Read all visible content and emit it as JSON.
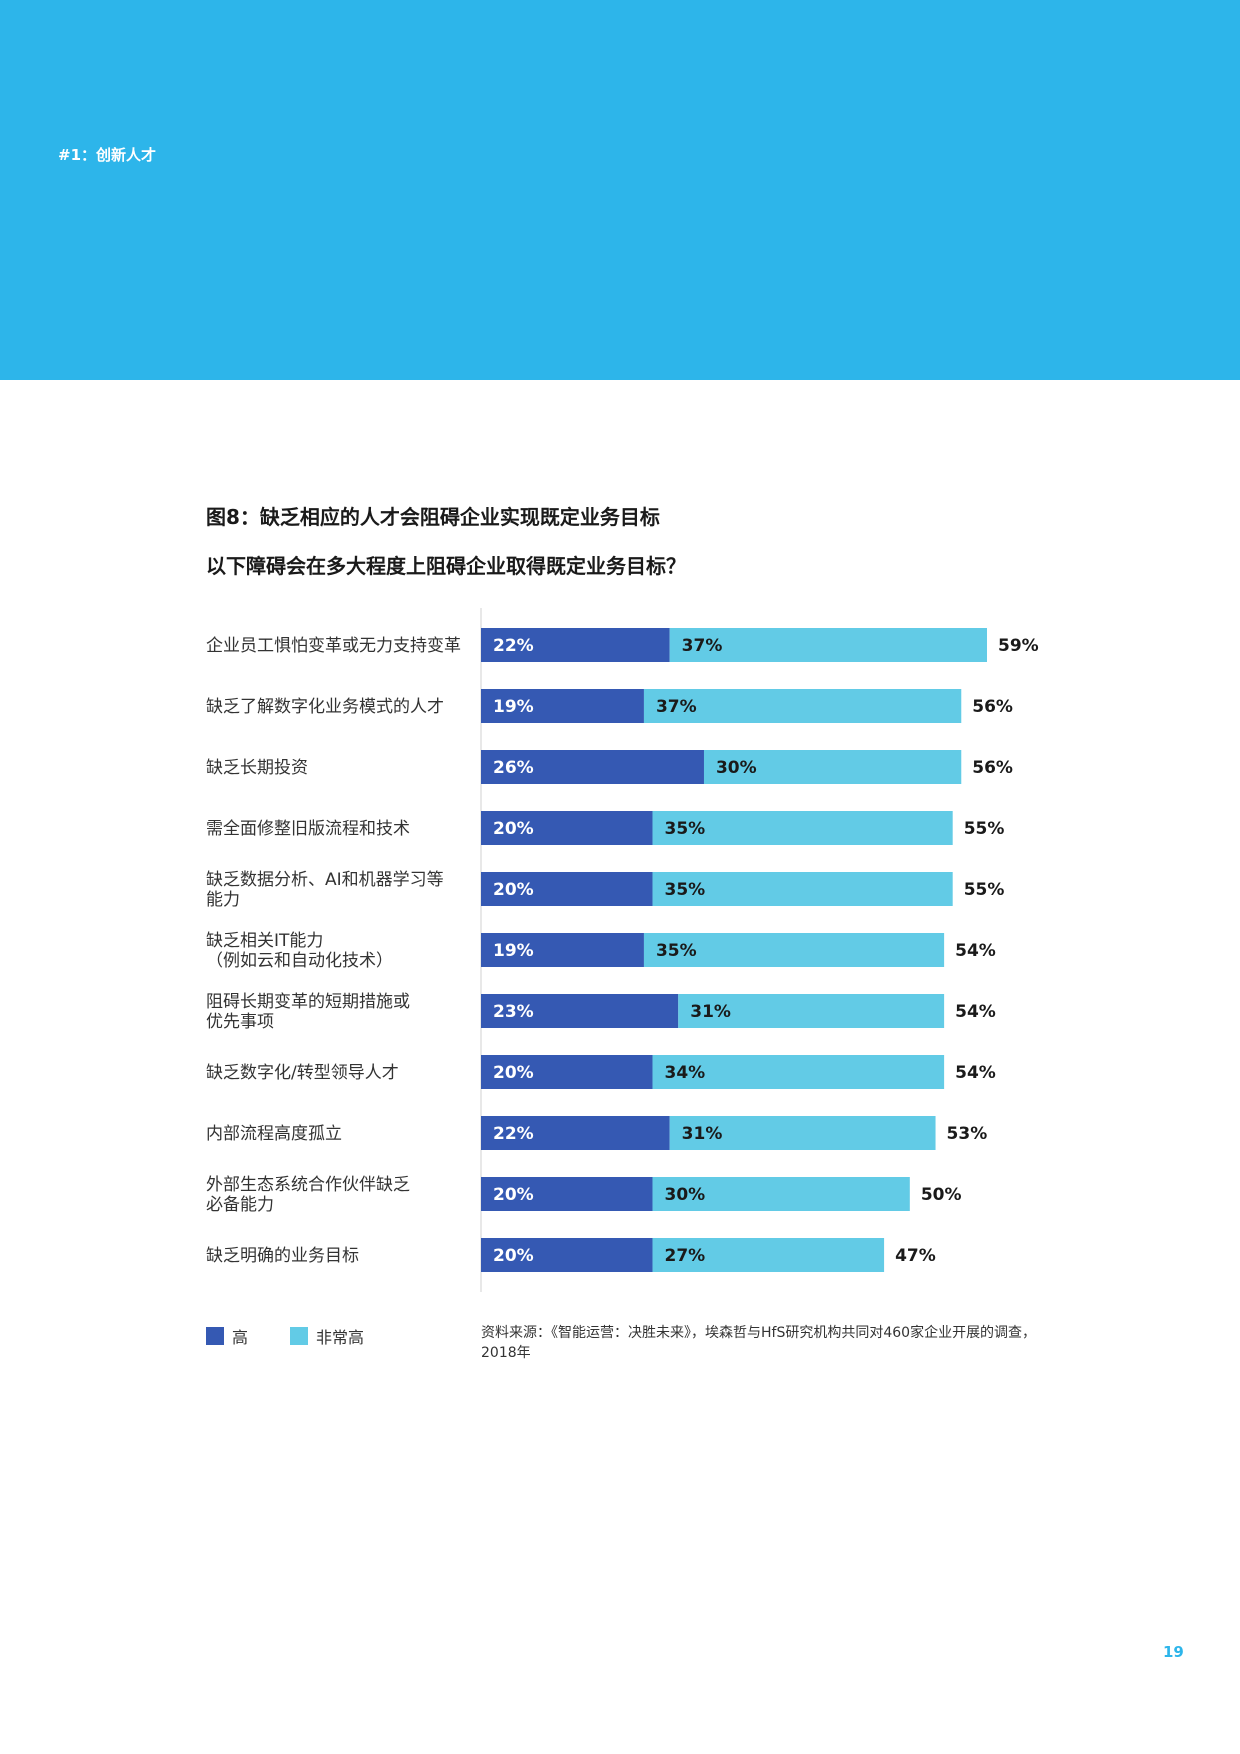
{
  "header": {
    "section_label": "#1：创新人才",
    "band_color": "#2db5ea"
  },
  "figure": {
    "title": "图8：缺乏相应的人才会阻碍企业实现既定业务目标",
    "question": "以下障碍会在多大程度上阻碍企业取得既定业务目标？"
  },
  "chart_data": {
    "type": "bar",
    "orientation": "horizontal",
    "stacked": true,
    "categories": [
      [
        "企业员工惧怕变革或无力支持变革"
      ],
      [
        "缺乏了解数字化业务模式的人才"
      ],
      [
        "缺乏长期投资"
      ],
      [
        "需全面修整旧版流程和技术"
      ],
      [
        "缺乏数据分析、AI和机器学习等",
        "能力"
      ],
      [
        "缺乏相关IT能力",
        "（例如云和自动化技术）"
      ],
      [
        "阻碍长期变革的短期措施或",
        "优先事项"
      ],
      [
        "缺乏数字化/转型领导人才"
      ],
      [
        "内部流程高度孤立"
      ],
      [
        "外部生态系统合作伙伴缺乏",
        "必备能力"
      ],
      [
        "缺乏明确的业务目标"
      ]
    ],
    "series": [
      {
        "name": "高",
        "color": "#3559b3",
        "values": [
          22,
          19,
          26,
          20,
          20,
          19,
          23,
          20,
          22,
          20,
          20
        ],
        "labels": [
          "22%",
          "19%",
          "26%",
          "20%",
          "20%",
          "19%",
          "23%",
          "20%",
          "22%",
          "20%",
          "20%"
        ]
      },
      {
        "name": "非常高",
        "color": "#62cbe6",
        "values": [
          37,
          37,
          30,
          35,
          35,
          35,
          31,
          34,
          31,
          30,
          27
        ],
        "labels": [
          "37%",
          "37%",
          "30%",
          "35%",
          "35%",
          "35%",
          "31%",
          "34%",
          "31%",
          "30%",
          "27%"
        ]
      }
    ],
    "totals": [
      59,
      56,
      56,
      55,
      55,
      54,
      54,
      54,
      53,
      50,
      47
    ],
    "total_labels": [
      "59%",
      "56%",
      "56%",
      "55%",
      "55%",
      "54%",
      "54%",
      "54%",
      "53%",
      "50%",
      "47%"
    ],
    "xlim": [
      0,
      59
    ],
    "grid": false,
    "legend_position": "bottom-left"
  },
  "legend": {
    "items": [
      {
        "label": "高",
        "color": "#3559b3"
      },
      {
        "label": "非常高",
        "color": "#62cbe6"
      }
    ]
  },
  "source_note": "资料来源：《智能运营：决胜未来》，埃森哲与HfS研究机构共同对460家企业开展的调查，2018年",
  "page_number": {
    "text": "19",
    "color": "#2db5ea"
  }
}
